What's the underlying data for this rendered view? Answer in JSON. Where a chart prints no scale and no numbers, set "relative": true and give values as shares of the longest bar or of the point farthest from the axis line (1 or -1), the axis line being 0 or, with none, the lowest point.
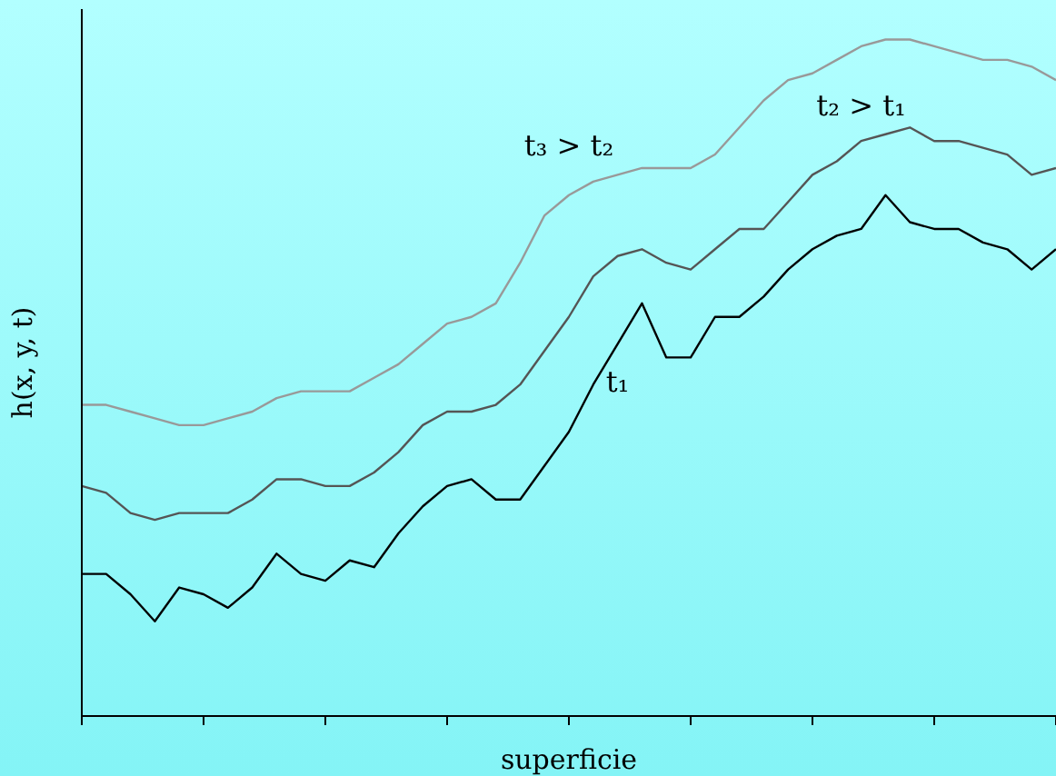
{
  "chart_data": {
    "type": "line",
    "relative": true,
    "xlabel": "superficie",
    "ylabel": "h(x, y, t)",
    "categories": [
      null,
      null,
      null,
      null,
      null,
      null,
      null,
      null,
      null,
      null,
      null,
      null,
      null,
      null,
      null,
      null,
      null,
      null,
      null,
      null,
      null,
      null,
      null,
      null,
      null,
      null,
      null,
      null,
      null,
      null,
      null,
      null,
      null,
      null,
      null,
      null,
      null,
      null,
      null,
      null,
      null
    ],
    "marker": "none",
    "series": [
      {
        "name": "t₁",
        "color": "#000000",
        "values": [
          0.21,
          0.21,
          0.18,
          0.14,
          0.19,
          0.18,
          0.16,
          0.19,
          0.24,
          0.21,
          0.2,
          0.23,
          0.22,
          0.27,
          0.31,
          0.34,
          0.35,
          0.32,
          0.32,
          0.37,
          0.42,
          0.49,
          0.55,
          0.61,
          0.53,
          0.53,
          0.59,
          0.59,
          0.62,
          0.66,
          0.69,
          0.71,
          0.72,
          0.77,
          0.73,
          0.72,
          0.72,
          0.7,
          0.69,
          0.66,
          0.69
        ]
      },
      {
        "name": "t₂ > t₁",
        "color": "#555555",
        "values": [
          0.34,
          0.33,
          0.3,
          0.29,
          0.3,
          0.3,
          0.3,
          0.32,
          0.35,
          0.35,
          0.34,
          0.34,
          0.36,
          0.39,
          0.43,
          0.45,
          0.45,
          0.46,
          0.49,
          0.54,
          0.59,
          0.65,
          0.68,
          0.69,
          0.67,
          0.66,
          0.69,
          0.72,
          0.72,
          0.76,
          0.8,
          0.82,
          0.85,
          0.86,
          0.87,
          0.85,
          0.85,
          0.84,
          0.83,
          0.8,
          0.81
        ]
      },
      {
        "name": "t₃ > t₂",
        "color": "#999999",
        "values": [
          0.46,
          0.46,
          0.45,
          0.44,
          0.43,
          0.43,
          0.44,
          0.45,
          0.47,
          0.48,
          0.48,
          0.48,
          0.5,
          0.52,
          0.55,
          0.58,
          0.59,
          0.61,
          0.67,
          0.74,
          0.77,
          0.79,
          0.8,
          0.81,
          0.81,
          0.81,
          0.83,
          0.87,
          0.91,
          0.94,
          0.95,
          0.97,
          0.99,
          1.0,
          1.0,
          0.99,
          0.98,
          0.97,
          0.97,
          0.96,
          0.94
        ]
      }
    ]
  }
}
